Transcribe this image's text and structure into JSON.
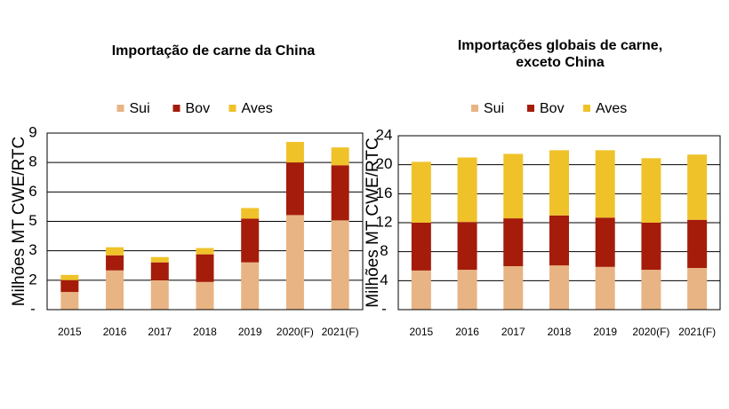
{
  "chart_data": [
    {
      "type": "stacked_bar",
      "title": [
        "Importação de carne da China"
      ],
      "y_label": "Milhões MT CWE/RTC",
      "categories": [
        "2015",
        "2016",
        "2017",
        "2018",
        "2019",
        "2020(F)",
        "2021(F)"
      ],
      "series": [
        {
          "name": "Sui",
          "color": "#e8b483",
          "values": [
            0.9,
            2.0,
            1.5,
            1.41,
            2.41,
            4.82,
            4.55
          ]
        },
        {
          "name": "Bov",
          "color": "#a51c0a",
          "values": [
            0.6,
            0.77,
            0.91,
            1.41,
            2.23,
            2.68,
            2.81
          ]
        },
        {
          "name": "Aves",
          "color": "#f0c22a",
          "values": [
            0.27,
            0.41,
            0.27,
            0.32,
            0.54,
            1.05,
            0.91
          ]
        }
      ],
      "ylim": [
        0,
        9
      ],
      "yticks": [
        {
          "value": 0,
          "label": "-"
        },
        {
          "value": 1.5,
          "label": "2"
        },
        3,
        {
          "value": 4.5,
          "label": "5"
        },
        6,
        {
          "value": 7.5,
          "label": "8"
        },
        9
      ],
      "grid": true
    },
    {
      "type": "stacked_bar",
      "title": [
        "Importações globais de carne,",
        "exceto China"
      ],
      "y_label": "Milhões MT CWE/RTC",
      "categories": [
        "2015",
        "2016",
        "2017",
        "2018",
        "2019",
        "2020(F)",
        "2021(F)"
      ],
      "series": [
        {
          "name": "Sui",
          "color": "#e8b483",
          "values": [
            5.4,
            5.5,
            6.0,
            6.1,
            5.9,
            5.5,
            5.75
          ]
        },
        {
          "name": "Bov",
          "color": "#a51c0a",
          "values": [
            6.6,
            6.6,
            6.6,
            6.9,
            6.8,
            6.5,
            6.65
          ]
        },
        {
          "name": "Aves",
          "color": "#f0c22a",
          "values": [
            8.4,
            8.9,
            8.9,
            9.0,
            9.3,
            8.9,
            9.0
          ]
        }
      ],
      "ylim": [
        0,
        24
      ],
      "yticks": [
        {
          "value": 0,
          "label": "-"
        },
        4,
        8,
        12,
        16,
        20,
        24
      ],
      "grid": true
    }
  ]
}
